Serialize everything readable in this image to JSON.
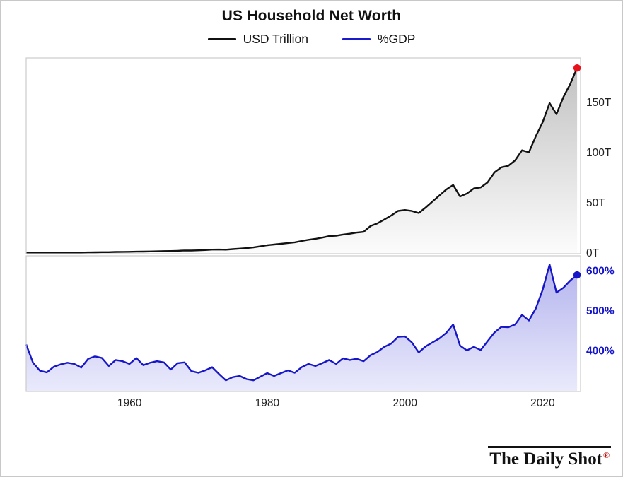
{
  "title": "US Household Net Worth",
  "legend": [
    {
      "label": "USD Trillion",
      "color": "#111111"
    },
    {
      "label": "%GDP",
      "color": "#1a1acd"
    }
  ],
  "branding": {
    "name": "The Daily Shot",
    "reg": "®",
    "reg_color": "#c41212"
  },
  "x_axis": {
    "ticks": [
      1960,
      1980,
      2000,
      2020
    ],
    "range": [
      1945,
      2025.5
    ],
    "label_color": "#222222"
  },
  "chart_data": [
    {
      "type": "line",
      "name": "USD Trillion",
      "title": "US Household Net Worth (USD Trillion)",
      "ylim": [
        0,
        195
      ],
      "yticks": [
        {
          "value": 0,
          "label": "0T"
        },
        {
          "value": 50,
          "label": "50T"
        },
        {
          "value": 100,
          "label": "100T"
        },
        {
          "value": 150,
          "label": "150T"
        }
      ],
      "tick_color": "#222222",
      "tick_bold": false,
      "line_color": "#111111",
      "fill_top": "#c2c2c2",
      "fill_bottom": "#fcfcfc",
      "end_dot_color": "#e8111c",
      "x": [
        1945,
        1946,
        1947,
        1948,
        1949,
        1950,
        1951,
        1952,
        1953,
        1954,
        1955,
        1956,
        1957,
        1958,
        1959,
        1960,
        1961,
        1962,
        1963,
        1964,
        1965,
        1966,
        1967,
        1968,
        1969,
        1970,
        1971,
        1972,
        1973,
        1974,
        1975,
        1976,
        1977,
        1978,
        1979,
        1980,
        1981,
        1982,
        1983,
        1984,
        1985,
        1986,
        1987,
        1988,
        1989,
        1990,
        1991,
        1992,
        1993,
        1994,
        1995,
        1996,
        1997,
        1998,
        1999,
        2000,
        2001,
        2002,
        2003,
        2004,
        2005,
        2006,
        2007,
        2008,
        2009,
        2010,
        2011,
        2012,
        2013,
        2014,
        2015,
        2016,
        2017,
        2018,
        2019,
        2020,
        2021,
        2022,
        2023,
        2024,
        2025
      ],
      "values": [
        0.72,
        0.76,
        0.81,
        0.86,
        0.9,
        1.0,
        1.1,
        1.16,
        1.21,
        1.32,
        1.43,
        1.53,
        1.57,
        1.73,
        1.84,
        1.89,
        2.06,
        2.09,
        2.24,
        2.41,
        2.61,
        2.64,
        2.92,
        3.22,
        3.19,
        3.38,
        3.68,
        4.08,
        4.12,
        4.04,
        4.58,
        5.08,
        5.56,
        6.3,
        7.35,
        8.45,
        9.15,
        9.85,
        10.65,
        11.35,
        12.65,
        13.85,
        14.75,
        16.05,
        17.55,
        17.85,
        19.05,
        19.95,
        21.05,
        21.75,
        27.6,
        30.2,
        34.0,
        38.0,
        42.6,
        43.5,
        42.5,
        40.5,
        46.0,
        52.0,
        58.0,
        64.0,
        68.5,
        57.0,
        60.0,
        65.0,
        66.0,
        71.0,
        81.0,
        86.0,
        87.5,
        93.0,
        103.0,
        101.0,
        117.0,
        131.0,
        150.0,
        139.0,
        156.0,
        169.0,
        185.0
      ]
    },
    {
      "type": "line",
      "name": "%GDP",
      "title": "US Household Net Worth (% of GDP)",
      "ylim": [
        300,
        640
      ],
      "yticks": [
        {
          "value": 400,
          "label": "400%"
        },
        {
          "value": 500,
          "label": "500%"
        },
        {
          "value": 600,
          "label": "600%"
        }
      ],
      "tick_color": "#1414cc",
      "tick_bold": true,
      "line_color": "#1616c8",
      "fill_top": "#b4b4ee",
      "fill_bottom": "#eaeafc",
      "end_dot_color": "#1616c8",
      "x": [
        1945,
        1946,
        1947,
        1948,
        1949,
        1950,
        1951,
        1952,
        1953,
        1954,
        1955,
        1956,
        1957,
        1958,
        1959,
        1960,
        1961,
        1962,
        1963,
        1964,
        1965,
        1966,
        1967,
        1968,
        1969,
        1970,
        1971,
        1972,
        1973,
        1974,
        1975,
        1976,
        1977,
        1978,
        1979,
        1980,
        1981,
        1982,
        1983,
        1984,
        1985,
        1986,
        1987,
        1988,
        1989,
        1990,
        1991,
        1992,
        1993,
        1994,
        1995,
        1996,
        1997,
        1998,
        1999,
        2000,
        2001,
        2002,
        2003,
        2004,
        2005,
        2006,
        2007,
        2008,
        2009,
        2010,
        2011,
        2012,
        2013,
        2014,
        2015,
        2016,
        2017,
        2018,
        2019,
        2020,
        2021,
        2022,
        2023,
        2024,
        2025
      ],
      "values": [
        418,
        372,
        352,
        348,
        362,
        368,
        372,
        369,
        360,
        382,
        388,
        384,
        364,
        379,
        376,
        369,
        384,
        366,
        372,
        376,
        373,
        355,
        371,
        373,
        351,
        347,
        353,
        361,
        344,
        328,
        336,
        339,
        331,
        328,
        337,
        346,
        339,
        346,
        353,
        347,
        361,
        369,
        364,
        371,
        379,
        369,
        383,
        379,
        382,
        376,
        391,
        399,
        412,
        420,
        437,
        438,
        423,
        398,
        413,
        423,
        433,
        447,
        468,
        415,
        403,
        412,
        404,
        426,
        448,
        462,
        461,
        468,
        492,
        478,
        508,
        555,
        618,
        548,
        560,
        578,
        592
      ]
    }
  ]
}
